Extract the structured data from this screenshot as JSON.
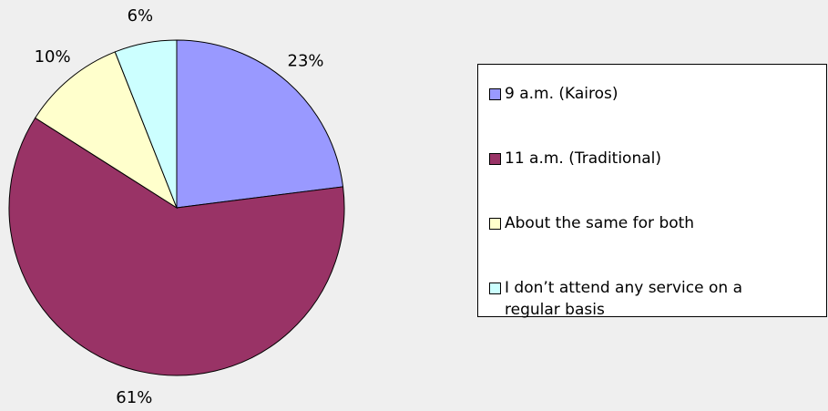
{
  "chart_data": {
    "type": "pie",
    "categories": [
      "9 a.m. (Kairos)",
      "11 a.m. (Traditional)",
      "About the same for both",
      "I don’t attend any service on a regular basis"
    ],
    "values": [
      23,
      61,
      10,
      6
    ],
    "value_labels": [
      "23%",
      "61%",
      "10%",
      "6%"
    ],
    "colors": [
      "#9999ff",
      "#993366",
      "#ffffcc",
      "#ccffff"
    ],
    "legend": "right"
  }
}
